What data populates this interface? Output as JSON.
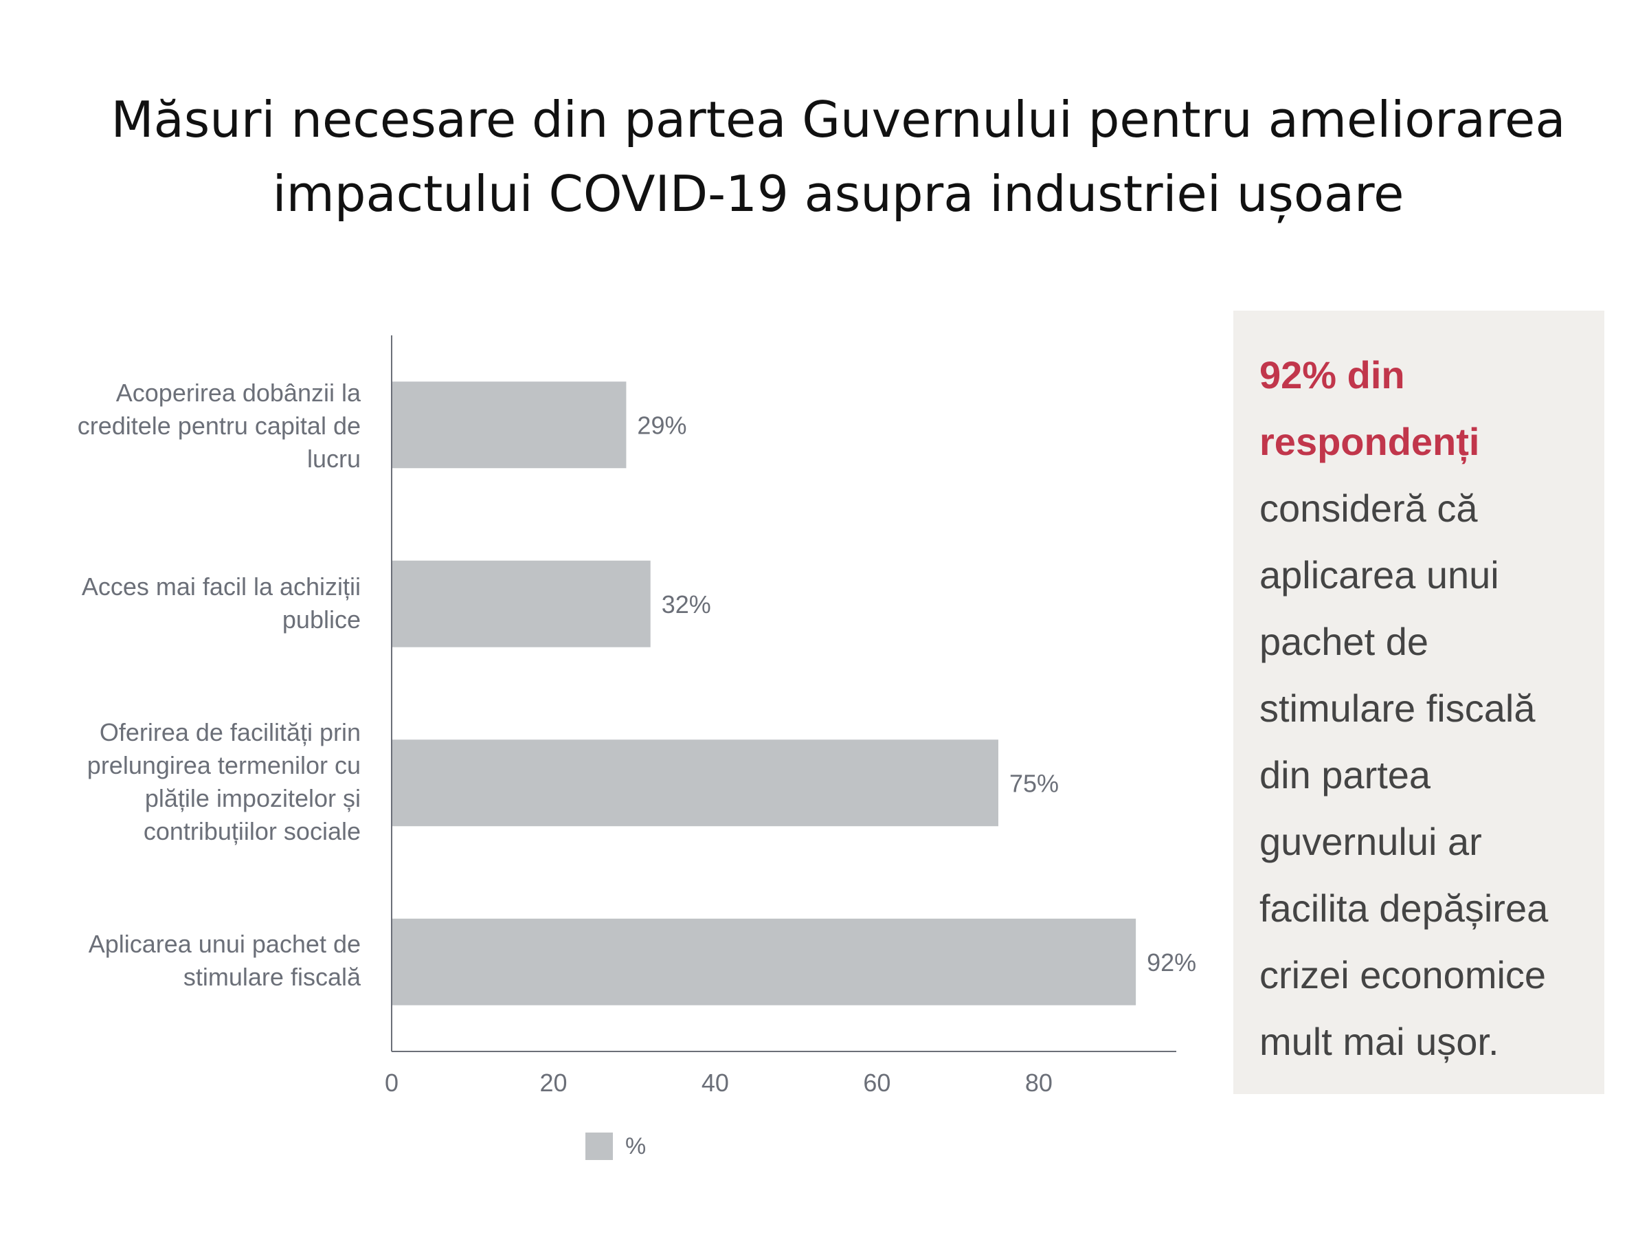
{
  "chart_data": {
    "type": "bar",
    "orientation": "horizontal",
    "title_lines": [
      "Măsuri necesare din partea Guvernului pentru ameliorarea",
      "impactului COVID-19 asupra industriei ușoare"
    ],
    "categories": [
      "Acoperirea dobânzii la creditele pentru capital de lucru",
      "Acces mai facil la achiziții publice",
      "Oferirea de facilități prin prelungirea termenilor cu plățile impozitelor și contribuțiilor sociale",
      "Aplicarea unui pachet de stimulare fiscală"
    ],
    "series": [
      {
        "name": "%",
        "values": [
          29,
          32,
          75,
          92
        ],
        "data_labels": [
          "29%",
          "32%",
          "75%",
          "92%"
        ],
        "color": "#bfc2c5"
      }
    ],
    "xlim": [
      0,
      97
    ],
    "x_ticks": [
      0,
      20,
      40,
      60,
      80
    ],
    "x_tick_labels": [
      "0",
      "20",
      "40",
      "60",
      "80"
    ],
    "xlabel": "",
    "ylabel": "",
    "grid": false,
    "legend": {
      "position": "bottom-center",
      "label": "%"
    }
  },
  "callout": {
    "highlight": "92% din respondenți",
    "text": "consideră că aplicarea unui pachet de stimulare fiscală din partea guvernului ar facilita depășirea crizei economice mult mai ușor."
  },
  "colors": {
    "bar": "#bfc2c5",
    "axis": "#6b6f78",
    "text": "#6b6f78",
    "title": "#111111",
    "highlight": "#c1364b",
    "callout_bg": "#f1efec"
  }
}
